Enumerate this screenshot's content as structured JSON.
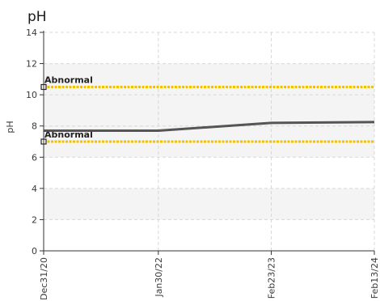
{
  "chart_data": {
    "type": "line",
    "title": "pH",
    "xlabel": "",
    "ylabel": "pH",
    "ylim": [
      0,
      14
    ],
    "yticks": [
      0,
      2,
      4,
      6,
      8,
      10,
      12,
      14
    ],
    "x": [
      "2020-12-31",
      "2022-01-30",
      "2023-02-23",
      "2024-02-13"
    ],
    "xtick_labels": [
      "Dec31/20",
      "Jan30/22",
      "Feb23/23",
      "Feb13/24"
    ],
    "series": [
      {
        "values": [
          7.7,
          7.7,
          8.2,
          8.25
        ],
        "color": "#555555"
      }
    ],
    "reference_lines": [
      {
        "label": "Abnormal",
        "value": 10.5,
        "color": "#f2c200"
      },
      {
        "label": "Abnormal",
        "value": 7.0,
        "color": "#f2c200"
      }
    ],
    "bands": [
      {
        "from": 2,
        "to": 4,
        "color": "#f4f4f4"
      },
      {
        "from": 6,
        "to": 10,
        "color": "#f4f4f4"
      },
      {
        "from": 10,
        "to": 12,
        "color": "#f4f4f4"
      }
    ],
    "grid": true,
    "colors": {
      "axis": "#333333",
      "grid": "#d8d8d8",
      "band": "#f4f4f4"
    }
  }
}
